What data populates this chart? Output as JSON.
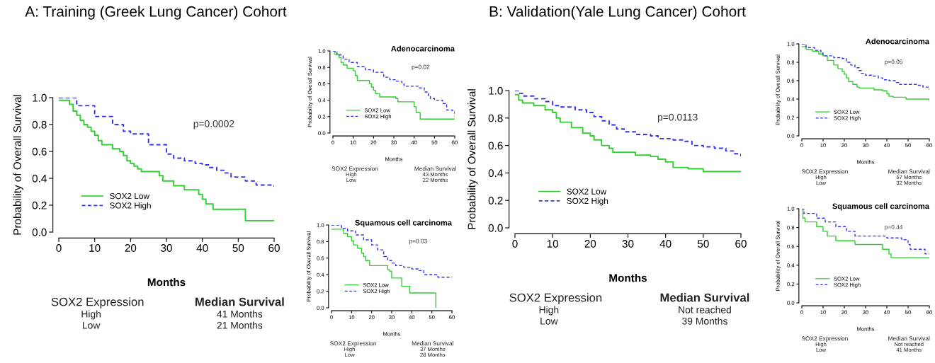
{
  "chart_data": [
    {
      "type": "step",
      "title": "A: Training (Greek Lung Cancer) Cohort",
      "xlabel": "Months",
      "ylabel": "Probability of Overall Survival",
      "xlim": [
        0,
        60
      ],
      "xticks": [
        0,
        10,
        20,
        30,
        40,
        50,
        60
      ],
      "ylim": [
        0,
        1
      ],
      "yticks": [
        {
          "value": 0,
          "label": "0.0"
        },
        {
          "value": 0.2,
          "label": "0.2"
        },
        {
          "value": 0.4,
          "label": "0.4"
        },
        {
          "value": 0.6,
          "label": "0.6"
        },
        {
          "value": 0.8,
          "label": "0.8"
        },
        {
          "value": 1,
          "label": "1.0"
        }
      ],
      "legend": "bottom left",
      "grid": false,
      "marker": "none",
      "annotations": [
        "p=0.0002",
        "SOX2 Expression",
        "High",
        "Low",
        "Median Survival",
        "41 Months",
        "21 Months"
      ],
      "series": [
        {
          "name": "SOX2 Low",
          "color": "#33cc33",
          "line_style": "solid",
          "x": [
            0,
            3,
            4,
            5,
            6,
            7,
            8,
            9,
            10,
            11,
            12,
            15,
            17,
            18,
            19,
            20,
            21,
            22,
            23,
            28,
            29,
            32,
            35,
            39,
            40,
            41,
            43,
            52,
            60
          ],
          "values": [
            0.98,
            0.95,
            0.9,
            0.87,
            0.83,
            0.8,
            0.78,
            0.75,
            0.72,
            0.68,
            0.65,
            0.62,
            0.6,
            0.57,
            0.53,
            0.51,
            0.49,
            0.47,
            0.45,
            0.42,
            0.38,
            0.345,
            0.315,
            0.28,
            0.245,
            0.21,
            0.17,
            0.085,
            0.085
          ]
        },
        {
          "name": "SOX2 High",
          "color": "#3333ee",
          "line_style": "dashed",
          "x": [
            0,
            5,
            10,
            15,
            18,
            20,
            25,
            30,
            32,
            35,
            38,
            40,
            42,
            44,
            46,
            48,
            52,
            55,
            60
          ],
          "values": [
            1.0,
            0.94,
            0.86,
            0.8,
            0.75,
            0.73,
            0.65,
            0.58,
            0.55,
            0.53,
            0.51,
            0.5,
            0.48,
            0.46,
            0.44,
            0.41,
            0.38,
            0.35,
            0.34
          ]
        }
      ]
    },
    {
      "type": "step",
      "title": "Adenocarcinoma",
      "xlabel": "Months",
      "ylabel": "Probability of Overall Survival",
      "xlim": [
        0,
        60
      ],
      "xticks": [
        0,
        10,
        20,
        30,
        40,
        50,
        60
      ],
      "ylim": [
        0,
        1
      ],
      "yticks": [
        {
          "value": 0,
          "label": "0.0"
        },
        {
          "value": 0.2,
          "label": "0.2"
        },
        {
          "value": 0.4,
          "label": "0.4"
        },
        {
          "value": 0.6,
          "label": "0.6"
        },
        {
          "value": 0.8,
          "label": "0.8"
        },
        {
          "value": 1,
          "label": "1.0"
        }
      ],
      "legend": "bottom left",
      "grid": false,
      "marker": "none",
      "annotations": [
        "p=0.02",
        "SOX2 Expression",
        "High",
        "Low",
        "Median Survival",
        "43 Months",
        "22 Months"
      ],
      "series": [
        {
          "name": "SOX2 Low",
          "color": "#33cc33",
          "line_style": "solid",
          "x": [
            0,
            1,
            3,
            4,
            5,
            7,
            10,
            11,
            12,
            18,
            19,
            20,
            21,
            23,
            31,
            32,
            40,
            41,
            43,
            60
          ],
          "values": [
            1.0,
            0.96,
            0.92,
            0.86,
            0.83,
            0.79,
            0.76,
            0.7,
            0.64,
            0.6,
            0.56,
            0.52,
            0.48,
            0.44,
            0.42,
            0.38,
            0.32,
            0.25,
            0.17,
            0.17
          ]
        },
        {
          "name": "SOX2 High",
          "color": "#3333ee",
          "line_style": "dashed",
          "x": [
            0,
            2,
            5,
            8,
            12,
            16,
            20,
            25,
            28,
            31,
            34,
            35,
            42,
            45,
            47,
            48,
            50,
            54,
            56,
            59,
            60
          ],
          "values": [
            1.0,
            0.95,
            0.9,
            0.86,
            0.81,
            0.77,
            0.74,
            0.68,
            0.65,
            0.63,
            0.6,
            0.57,
            0.55,
            0.5,
            0.46,
            0.42,
            0.4,
            0.36,
            0.28,
            0.27,
            0.2
          ]
        }
      ]
    },
    {
      "type": "step",
      "title": "Squamous cell carcinoma",
      "xlabel": "Months",
      "ylabel": "Probability of Overall Survival",
      "xlim": [
        0,
        60
      ],
      "xticks": [
        0,
        10,
        20,
        30,
        40,
        50,
        60
      ],
      "ylim": [
        0,
        1
      ],
      "yticks": [
        {
          "value": 0,
          "label": "0.0"
        },
        {
          "value": 0.2,
          "label": "0.2"
        },
        {
          "value": 0.4,
          "label": "0.4"
        },
        {
          "value": 0.6,
          "label": "0.6"
        },
        {
          "value": 0.8,
          "label": "0.8"
        },
        {
          "value": 1,
          "label": "1.0"
        }
      ],
      "legend": "bottom left",
      "grid": false,
      "marker": "none",
      "annotations": [
        "p=0.03",
        "SOX2 Expression",
        "High",
        "Low",
        "Median Survival",
        "37 Months",
        "28 Months"
      ],
      "series": [
        {
          "name": "SOX2 Low",
          "color": "#33cc33",
          "line_style": "solid",
          "x": [
            0,
            6,
            8,
            10,
            11,
            13,
            15,
            16,
            17,
            19,
            28,
            29,
            30,
            35,
            39,
            52
          ],
          "values": [
            0.95,
            0.9,
            0.86,
            0.81,
            0.76,
            0.72,
            0.66,
            0.62,
            0.57,
            0.51,
            0.46,
            0.44,
            0.36,
            0.26,
            0.18,
            0.0
          ]
        },
        {
          "name": "SOX2 High",
          "color": "#3333ee",
          "line_style": "dashed",
          "x": [
            0,
            5,
            8,
            12,
            16,
            20,
            23,
            26,
            28,
            30,
            32,
            36,
            40,
            43,
            46,
            53,
            60
          ],
          "values": [
            1.0,
            0.96,
            0.93,
            0.88,
            0.82,
            0.76,
            0.7,
            0.62,
            0.57,
            0.54,
            0.51,
            0.49,
            0.47,
            0.45,
            0.4,
            0.37,
            0.37
          ]
        }
      ]
    },
    {
      "type": "step",
      "title": "B: Validation(Yale Lung Cancer) Cohort",
      "xlabel": "Months",
      "ylabel": "Probability of Overall Survival",
      "xlim": [
        0,
        60
      ],
      "xticks": [
        0,
        10,
        20,
        30,
        40,
        50,
        60
      ],
      "ylim": [
        0,
        1
      ],
      "yticks": [
        {
          "value": 0,
          "label": "0.0"
        },
        {
          "value": 0.2,
          "label": "0.2"
        },
        {
          "value": 0.4,
          "label": "0.4"
        },
        {
          "value": 0.6,
          "label": "0.6"
        },
        {
          "value": 0.8,
          "label": "0.8"
        },
        {
          "value": 1,
          "label": "1.0"
        }
      ],
      "legend": "bottom left",
      "grid": false,
      "marker": "none",
      "annotations": [
        "p=0.0113",
        "SOX2 Expression",
        "High",
        "Low",
        "Median Survival",
        "Not reached",
        "39 Months"
      ],
      "series": [
        {
          "name": "SOX2 Low",
          "color": "#33cc33",
          "line_style": "solid",
          "x": [
            0,
            1,
            2,
            5,
            8,
            10,
            11,
            12,
            15,
            18,
            20,
            21,
            23,
            25,
            26,
            32,
            36,
            38,
            40,
            42,
            46,
            50,
            60
          ],
          "values": [
            0.97,
            0.93,
            0.91,
            0.89,
            0.86,
            0.84,
            0.8,
            0.77,
            0.73,
            0.69,
            0.67,
            0.64,
            0.6,
            0.58,
            0.55,
            0.53,
            0.52,
            0.5,
            0.48,
            0.44,
            0.43,
            0.41,
            0.41
          ]
        },
        {
          "name": "SOX2 High",
          "color": "#3333ee",
          "line_style": "dashed",
          "x": [
            0,
            1,
            2,
            5,
            8,
            10,
            12,
            16,
            19,
            21,
            23,
            25,
            27,
            29,
            32,
            36,
            38,
            42,
            45,
            47,
            50,
            53,
            56,
            58,
            60
          ],
          "values": [
            1.0,
            0.98,
            0.96,
            0.94,
            0.92,
            0.89,
            0.88,
            0.86,
            0.84,
            0.81,
            0.78,
            0.75,
            0.72,
            0.7,
            0.68,
            0.67,
            0.65,
            0.64,
            0.63,
            0.6,
            0.59,
            0.58,
            0.56,
            0.54,
            0.52
          ]
        }
      ]
    },
    {
      "type": "step",
      "title": "Adenocarcinoma",
      "xlabel": "Months",
      "ylabel": "Probability of Overall Survival",
      "xlim": [
        0,
        60
      ],
      "xticks": [
        0,
        10,
        20,
        30,
        40,
        50,
        60
      ],
      "ylim": [
        0,
        1
      ],
      "yticks": [
        {
          "value": 0,
          "label": "0.0"
        },
        {
          "value": 0.2,
          "label": "0.2"
        },
        {
          "value": 0.4,
          "label": "0.4"
        },
        {
          "value": 0.6,
          "label": "0.6"
        },
        {
          "value": 0.8,
          "label": "0.8"
        },
        {
          "value": 1,
          "label": "1.0"
        }
      ],
      "legend": "bottom left",
      "grid": false,
      "marker": "none",
      "annotations": [
        "p=0.05",
        "SOX2 Expression",
        "High",
        "Low",
        "Median Survival",
        "57 Months",
        "32 Months"
      ],
      "series": [
        {
          "name": "SOX2 Low",
          "color": "#33cc33",
          "line_style": "solid",
          "x": [
            0,
            2,
            5,
            8,
            10,
            12,
            15,
            17,
            19,
            20,
            21,
            22,
            24,
            26,
            27,
            34,
            38,
            40,
            41,
            43,
            49,
            60
          ],
          "values": [
            0.97,
            0.94,
            0.92,
            0.89,
            0.87,
            0.82,
            0.77,
            0.73,
            0.7,
            0.67,
            0.63,
            0.59,
            0.56,
            0.53,
            0.52,
            0.5,
            0.49,
            0.46,
            0.43,
            0.42,
            0.4,
            0.38
          ]
        },
        {
          "name": "SOX2 High",
          "color": "#3333ee",
          "line_style": "dashed",
          "x": [
            0,
            2,
            6,
            9,
            10,
            15,
            19,
            21,
            23,
            25,
            27,
            28,
            30,
            33,
            36,
            38,
            41,
            44,
            46,
            54,
            57,
            60
          ],
          "values": [
            1.0,
            0.96,
            0.93,
            0.9,
            0.87,
            0.85,
            0.84,
            0.8,
            0.77,
            0.74,
            0.71,
            0.68,
            0.66,
            0.65,
            0.63,
            0.61,
            0.6,
            0.58,
            0.56,
            0.55,
            0.53,
            0.5
          ]
        }
      ]
    },
    {
      "type": "step",
      "title": "Squamous cell carcinoma",
      "xlabel": "Months",
      "ylabel": "Probability of Overall Survival",
      "xlim": [
        0,
        60
      ],
      "xticks": [
        0,
        10,
        20,
        30,
        40,
        50,
        60
      ],
      "ylim": [
        0,
        1
      ],
      "yticks": [
        {
          "value": 0,
          "label": "0.0"
        },
        {
          "value": 0.2,
          "label": "0.2"
        },
        {
          "value": 0.4,
          "label": "0.4"
        },
        {
          "value": 0.6,
          "label": "0.6"
        },
        {
          "value": 0.8,
          "label": "0.8"
        },
        {
          "value": 1,
          "label": "1.0"
        }
      ],
      "legend": "bottom left",
      "grid": false,
      "marker": "none",
      "annotations": [
        "p=0.44",
        "SOX2 Expression",
        "High",
        "Low",
        "Median Survival",
        "Not reached",
        "41 Months"
      ],
      "series": [
        {
          "name": "SOX2 Low",
          "color": "#33cc33",
          "line_style": "solid",
          "x": [
            0,
            0.5,
            1.5,
            7,
            10,
            12,
            16,
            25,
            38,
            41,
            42,
            60
          ],
          "values": [
            1.0,
            0.9,
            0.86,
            0.81,
            0.76,
            0.71,
            0.66,
            0.62,
            0.57,
            0.52,
            0.48,
            0.48
          ]
        },
        {
          "name": "SOX2 High",
          "color": "#3333ee",
          "line_style": "dashed",
          "x": [
            0,
            1,
            7,
            11,
            16,
            21,
            25,
            40,
            47,
            50,
            51,
            58,
            60
          ],
          "values": [
            1.0,
            0.95,
            0.9,
            0.86,
            0.81,
            0.76,
            0.71,
            0.69,
            0.67,
            0.62,
            0.57,
            0.52,
            0.52
          ]
        }
      ]
    }
  ]
}
